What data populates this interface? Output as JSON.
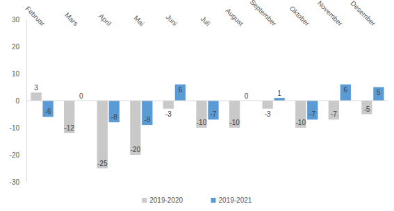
{
  "chart_data": {
    "type": "bar",
    "categories": [
      "Februar",
      "Mars",
      "April",
      "Mai",
      "Juni",
      "Juli",
      "August",
      "September",
      "Oktober",
      "November",
      "Desember"
    ],
    "series": [
      {
        "name": "2019-2020",
        "color": "#c9c9c9",
        "values": [
          3,
          -12,
          -25,
          -20,
          -3,
          -10,
          -10,
          -3,
          -10,
          -7,
          -5
        ]
      },
      {
        "name": "2019-2021",
        "color": "#5b9bd5",
        "values": [
          -6,
          0,
          -8,
          -9,
          6,
          -7,
          0,
          1,
          -7,
          6,
          5
        ]
      }
    ],
    "ylim": [
      -30,
      30
    ],
    "yticks": [
      -30,
      -20,
      -10,
      0,
      10,
      20,
      30
    ],
    "grid": false,
    "data_labels": true,
    "legend": "bottom"
  }
}
